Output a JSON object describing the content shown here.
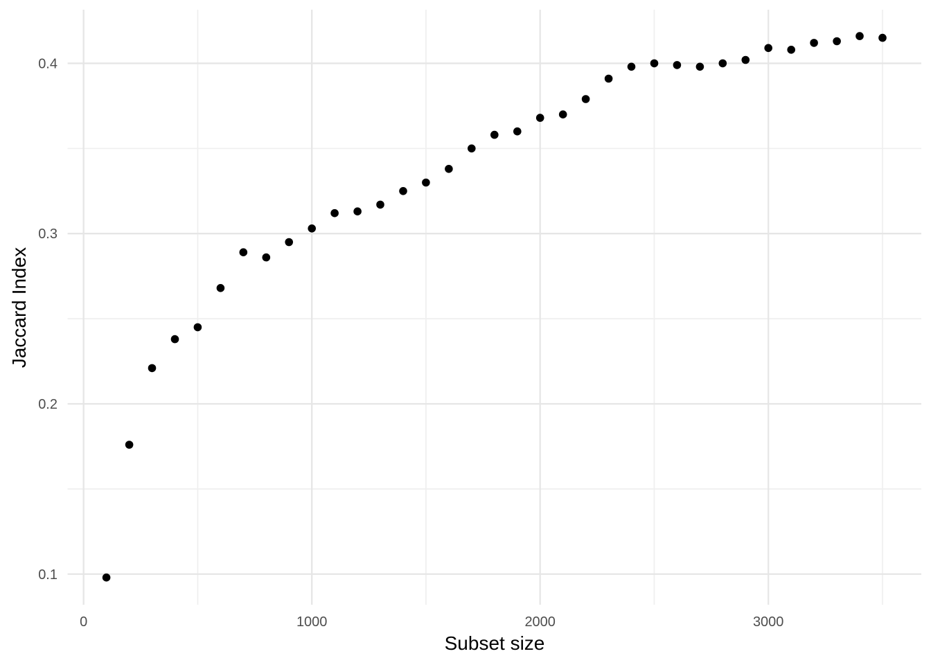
{
  "figure": {
    "background_color": "#FFFFFF",
    "panel_background_color": "#FFFFFF"
  },
  "chart_data": {
    "type": "scatter",
    "title": "",
    "xlabel": "Subset size",
    "ylabel": "Jaccard Index",
    "legend": "none",
    "grid": "major+minor",
    "point_shape": "circle",
    "point_color": "#000000",
    "grid_major_color": "#E6E6E6",
    "grid_minor_color": "#EFEFEF",
    "tick_label_color": "#4D4D4D",
    "axis_title_color": "#000000",
    "xlim": [
      -70,
      3670
    ],
    "ylim": [
      0.082,
      0.4315
    ],
    "x_ticks_major": [
      0,
      1000,
      2000,
      3000
    ],
    "x_ticks_minor": [
      500,
      1500,
      2500,
      3500
    ],
    "x_tick_labels": [
      "0",
      "1000",
      "2000",
      "3000"
    ],
    "y_ticks_major": [
      0.1,
      0.2,
      0.3,
      0.4
    ],
    "y_ticks_minor": [
      0.15,
      0.25,
      0.35
    ],
    "y_tick_labels": [
      "0.1",
      "0.2",
      "0.3",
      "0.4"
    ],
    "x": [
      100,
      200,
      300,
      400,
      500,
      600,
      700,
      800,
      900,
      1000,
      1100,
      1200,
      1300,
      1400,
      1500,
      1600,
      1700,
      1800,
      1900,
      2000,
      2100,
      2200,
      2300,
      2400,
      2500,
      2600,
      2700,
      2800,
      2900,
      3000,
      3100,
      3200,
      3300,
      3400,
      3500
    ],
    "y": [
      0.098,
      0.176,
      0.221,
      0.238,
      0.245,
      0.268,
      0.289,
      0.286,
      0.295,
      0.303,
      0.312,
      0.313,
      0.317,
      0.325,
      0.33,
      0.338,
      0.35,
      0.358,
      0.36,
      0.368,
      0.37,
      0.379,
      0.391,
      0.398,
      0.4,
      0.399,
      0.398,
      0.4,
      0.402,
      0.409,
      0.408,
      0.412,
      0.413,
      0.416,
      0.415
    ]
  }
}
